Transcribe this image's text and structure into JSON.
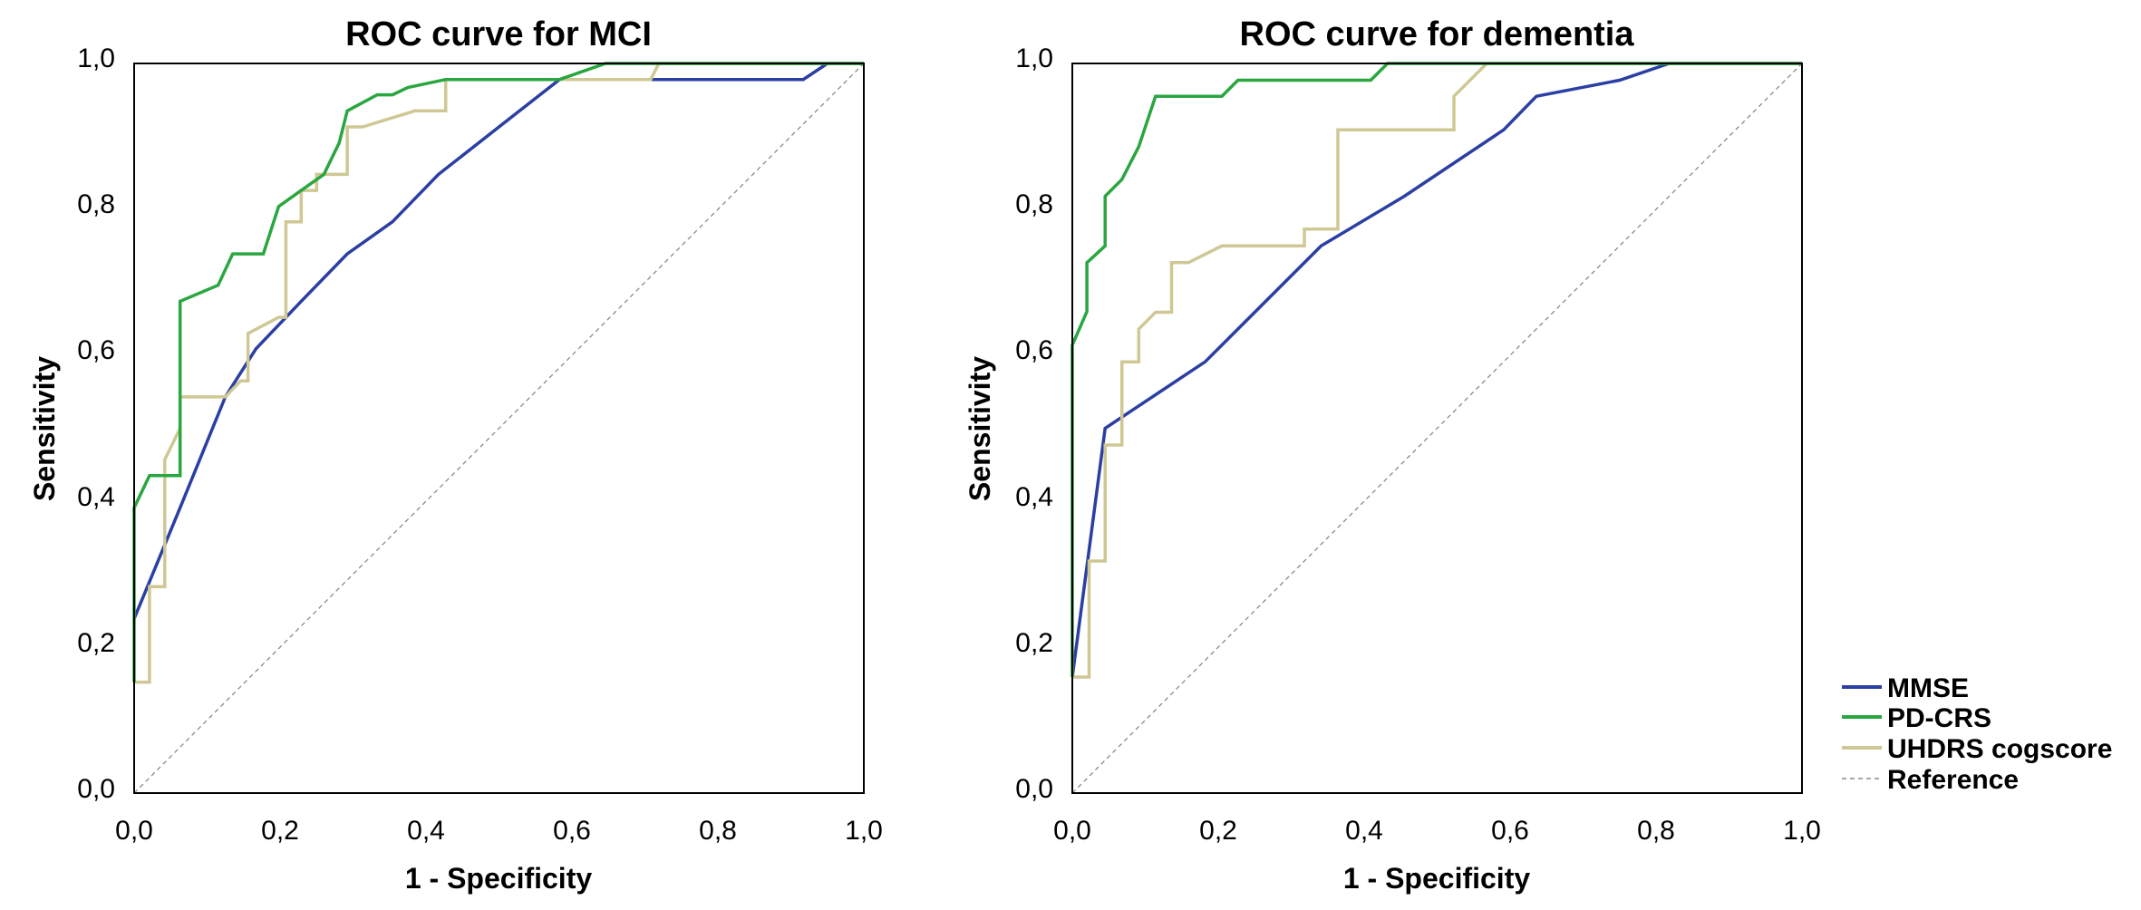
{
  "legend": {
    "position": "right-bottom",
    "items": [
      {
        "label": "MMSE",
        "color": "#2b3fa3",
        "style": "solid"
      },
      {
        "label": "PD-CRS",
        "color": "#2aa640",
        "style": "solid"
      },
      {
        "label": "UHDRS cogscore",
        "color": "#cfc894",
        "style": "solid"
      },
      {
        "label": "Reference",
        "color": "#8a8a8a",
        "style": "dashed"
      }
    ]
  },
  "chart_data": [
    {
      "type": "line",
      "title": "ROC curve for MCI",
      "xlabel": "1 - Specificity",
      "ylabel": "Sensitivity",
      "xlim": [
        0,
        1
      ],
      "ylim": [
        0,
        1
      ],
      "xticks": [
        "0,0",
        "0,2",
        "0,4",
        "0,6",
        "0,8",
        "1,0"
      ],
      "yticks": [
        "0,0",
        "0,2",
        "0,4",
        "0,6",
        "0,8",
        "1,0"
      ],
      "grid": false,
      "series": [
        {
          "name": "MMSE",
          "color": "#2b3fa3",
          "points": [
            [
              0.0,
              0.239
            ],
            [
              0.063,
              0.391
            ],
            [
              0.125,
              0.543
            ],
            [
              0.167,
              0.609
            ],
            [
              0.229,
              0.674
            ],
            [
              0.292,
              0.739
            ],
            [
              0.354,
              0.783
            ],
            [
              0.417,
              0.848
            ],
            [
              0.5,
              0.913
            ],
            [
              0.583,
              0.978
            ],
            [
              0.917,
              0.978
            ],
            [
              0.95,
              1.0
            ],
            [
              1.0,
              1.0
            ]
          ]
        },
        {
          "name": "PD-CRS",
          "color": "#2aa640",
          "points": [
            [
              0.0,
              0.152
            ],
            [
              0.0,
              0.391
            ],
            [
              0.021,
              0.435
            ],
            [
              0.063,
              0.435
            ],
            [
              0.063,
              0.674
            ],
            [
              0.115,
              0.696
            ],
            [
              0.135,
              0.739
            ],
            [
              0.177,
              0.739
            ],
            [
              0.198,
              0.804
            ],
            [
              0.229,
              0.826
            ],
            [
              0.26,
              0.848
            ],
            [
              0.281,
              0.891
            ],
            [
              0.292,
              0.935
            ],
            [
              0.333,
              0.957
            ],
            [
              0.354,
              0.957
            ],
            [
              0.375,
              0.967
            ],
            [
              0.427,
              0.978
            ],
            [
              0.583,
              0.978
            ],
            [
              0.646,
              1.0
            ],
            [
              1.0,
              1.0
            ]
          ]
        },
        {
          "name": "UHDRS cogscore",
          "color": "#cfc894",
          "points": [
            [
              0.0,
              0.152
            ],
            [
              0.021,
              0.152
            ],
            [
              0.021,
              0.283
            ],
            [
              0.042,
              0.283
            ],
            [
              0.042,
              0.457
            ],
            [
              0.063,
              0.5
            ],
            [
              0.063,
              0.543
            ],
            [
              0.125,
              0.543
            ],
            [
              0.146,
              0.565
            ],
            [
              0.156,
              0.565
            ],
            [
              0.156,
              0.63
            ],
            [
              0.198,
              0.652
            ],
            [
              0.208,
              0.652
            ],
            [
              0.208,
              0.783
            ],
            [
              0.229,
              0.783
            ],
            [
              0.229,
              0.826
            ],
            [
              0.25,
              0.826
            ],
            [
              0.25,
              0.848
            ],
            [
              0.292,
              0.848
            ],
            [
              0.292,
              0.913
            ],
            [
              0.313,
              0.913
            ],
            [
              0.385,
              0.935
            ],
            [
              0.427,
              0.935
            ],
            [
              0.427,
              0.978
            ],
            [
              0.708,
              0.978
            ],
            [
              0.719,
              1.0
            ],
            [
              1.0,
              1.0
            ]
          ]
        },
        {
          "name": "Reference",
          "color": "#8a8a8a",
          "dashed": true,
          "points": [
            [
              0,
              0
            ],
            [
              1,
              1
            ]
          ]
        }
      ]
    },
    {
      "type": "line",
      "title": "ROC curve for dementia",
      "xlabel": "1 - Specificity",
      "ylabel": "Sensitivity",
      "xlim": [
        0,
        1
      ],
      "ylim": [
        0,
        1
      ],
      "xticks": [
        "0,0",
        "0,2",
        "0,4",
        "0,6",
        "0,8",
        "1,0"
      ],
      "yticks": [
        "0,0",
        "0,2",
        "0,4",
        "0,6",
        "0,8",
        "1,0"
      ],
      "grid": false,
      "series": [
        {
          "name": "MMSE",
          "color": "#2b3fa3",
          "points": [
            [
              0.0,
              0.159
            ],
            [
              0.045,
              0.5
            ],
            [
              0.182,
              0.591
            ],
            [
              0.341,
              0.75
            ],
            [
              0.455,
              0.818
            ],
            [
              0.591,
              0.909
            ],
            [
              0.636,
              0.955
            ],
            [
              0.75,
              0.977
            ],
            [
              0.818,
              1.0
            ],
            [
              1.0,
              1.0
            ]
          ]
        },
        {
          "name": "PD-CRS",
          "color": "#2aa640",
          "points": [
            [
              0.0,
              0.159
            ],
            [
              0.0,
              0.614
            ],
            [
              0.02,
              0.66
            ],
            [
              0.02,
              0.727
            ],
            [
              0.045,
              0.75
            ],
            [
              0.045,
              0.818
            ],
            [
              0.068,
              0.841
            ],
            [
              0.091,
              0.886
            ],
            [
              0.114,
              0.955
            ],
            [
              0.205,
              0.955
            ],
            [
              0.227,
              0.977
            ],
            [
              0.409,
              0.977
            ],
            [
              0.432,
              1.0
            ],
            [
              1.0,
              1.0
            ]
          ]
        },
        {
          "name": "UHDRS cogscore",
          "color": "#cfc894",
          "points": [
            [
              0.0,
              0.159
            ],
            [
              0.023,
              0.159
            ],
            [
              0.023,
              0.318
            ],
            [
              0.045,
              0.318
            ],
            [
              0.045,
              0.477
            ],
            [
              0.068,
              0.477
            ],
            [
              0.068,
              0.591
            ],
            [
              0.091,
              0.591
            ],
            [
              0.091,
              0.636
            ],
            [
              0.114,
              0.659
            ],
            [
              0.136,
              0.659
            ],
            [
              0.136,
              0.727
            ],
            [
              0.159,
              0.727
            ],
            [
              0.205,
              0.75
            ],
            [
              0.318,
              0.75
            ],
            [
              0.318,
              0.773
            ],
            [
              0.364,
              0.773
            ],
            [
              0.364,
              0.909
            ],
            [
              0.523,
              0.909
            ],
            [
              0.523,
              0.955
            ],
            [
              0.568,
              1.0
            ],
            [
              1.0,
              1.0
            ]
          ]
        },
        {
          "name": "Reference",
          "color": "#8a8a8a",
          "dashed": true,
          "points": [
            [
              0,
              0
            ],
            [
              1,
              1
            ]
          ]
        }
      ]
    }
  ]
}
